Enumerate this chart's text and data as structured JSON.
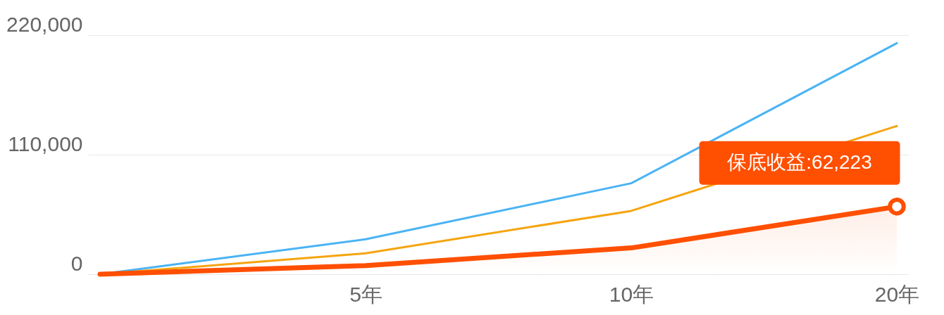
{
  "chart_data": {
    "type": "line",
    "categories": [
      null,
      "5年",
      "10年",
      "20年"
    ],
    "series": [
      {
        "color": "#4ab3f4",
        "values": [
          0,
          32200,
          83700,
          212600
        ]
      },
      {
        "color": "#f5a40f",
        "values": [
          0,
          19200,
          58300,
          136400
        ]
      },
      {
        "type": "area",
        "color": "#ff4f00",
        "values": [
          0,
          8000,
          24200,
          62223
        ]
      }
    ],
    "ylim": [
      0,
      220000
    ],
    "yticks": [
      {
        "value": 0,
        "label": "0"
      },
      {
        "value": 110000,
        "label": "110,000"
      },
      {
        "value": 220000,
        "label": "220,000"
      }
    ],
    "grid": "y",
    "legend": false,
    "annotations": [
      {
        "text": "保底收益:62,223",
        "x": "20年",
        "y": 62223
      }
    ]
  }
}
